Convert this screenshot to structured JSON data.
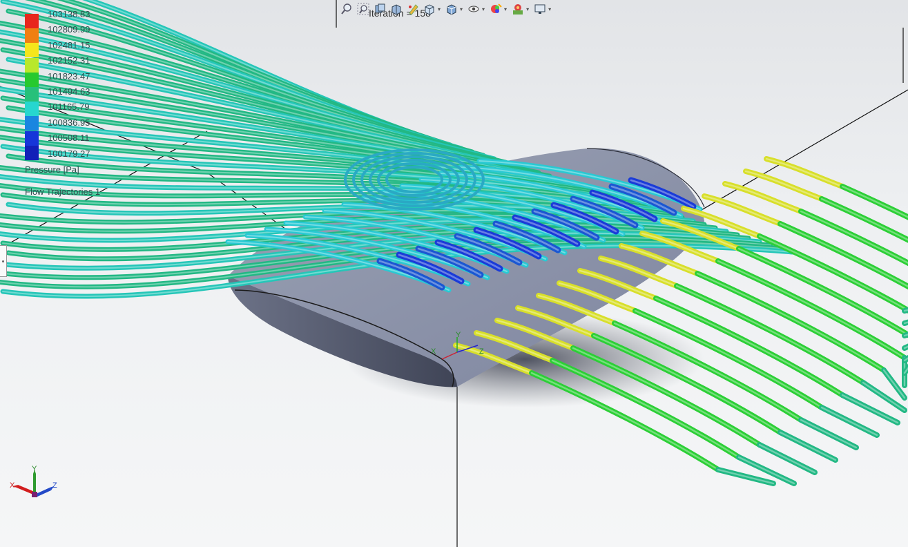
{
  "legend": {
    "ticks": [
      "103138.83",
      "102809.99",
      "102481.15",
      "102152.31",
      "101823.47",
      "101494.63",
      "101165.79",
      "100836.95",
      "100508.11",
      "100179.27"
    ],
    "colors": [
      "#e8261c",
      "#f07f12",
      "#f5e61c",
      "#b9e82b",
      "#27c92e",
      "#27c07a",
      "#27d6cf",
      "#1a86e0",
      "#1636d9",
      "#1220b8"
    ],
    "quantity": "Pressure [Pa]",
    "plot_name": "Flow Trajectories 1"
  },
  "status": {
    "iteration": "Iteration = 158"
  },
  "toolbar": {
    "icons": [
      "zoom-to-fit-icon",
      "zoom-to-area-icon",
      "previous-view-icon",
      "section-view-icon",
      "dynamic-annotation-icon",
      "view-orientation-icon",
      "display-style-icon",
      "hide-show-items-icon",
      "edit-appearance-icon",
      "apply-scene-icon",
      "view-settings-icon"
    ]
  },
  "triad": {
    "x": "X",
    "y": "Y",
    "z": "Z"
  },
  "origin_axes": {
    "x": "X",
    "y": "Y",
    "z": "Z"
  },
  "colors": {
    "background": "#eceef0",
    "airfoil": "#8d94a8",
    "airfoil_dark": "#5c6276",
    "shadow": "#4a4f5e"
  }
}
